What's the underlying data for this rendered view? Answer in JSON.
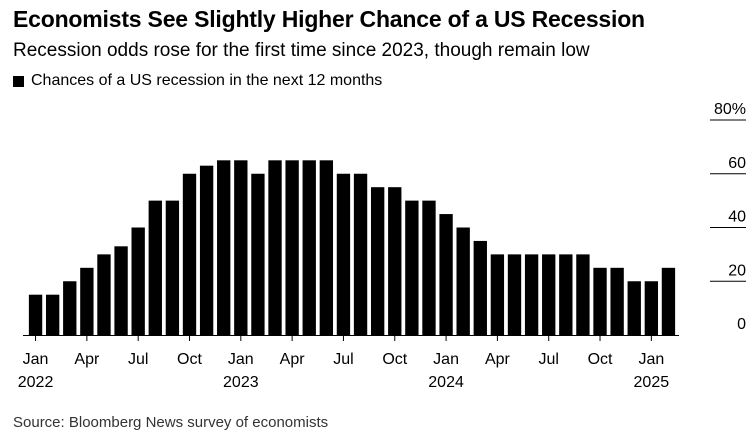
{
  "chart_data": {
    "type": "bar",
    "title": "Economists See Slightly Higher Chance of a US Recession",
    "subtitle": "Recession odds rose for the first time since 2023, though remain low",
    "legend": [
      "Chances of a US recession in the next 12 months"
    ],
    "source": "Source: Bloomberg News survey of economists",
    "color": "#000000",
    "categories": [
      "2022-01",
      "2022-02",
      "2022-03",
      "2022-04",
      "2022-05",
      "2022-06",
      "2022-07",
      "2022-08",
      "2022-09",
      "2022-10",
      "2022-11",
      "2022-12",
      "2023-01",
      "2023-02",
      "2023-03",
      "2023-04",
      "2023-05",
      "2023-06",
      "2023-07",
      "2023-08",
      "2023-09",
      "2023-10",
      "2023-11",
      "2023-12",
      "2024-01",
      "2024-02",
      "2024-03",
      "2024-04",
      "2024-05",
      "2024-06",
      "2024-07",
      "2024-08",
      "2024-09",
      "2024-10",
      "2024-11",
      "2024-12",
      "2025-01",
      "2025-02"
    ],
    "values": [
      15,
      15,
      20,
      25,
      30,
      33,
      40,
      50,
      50,
      60,
      63,
      65,
      65,
      60,
      65,
      65,
      65,
      65,
      60,
      60,
      55,
      55,
      50,
      50,
      45,
      40,
      35,
      30,
      30,
      30,
      30,
      30,
      30,
      25,
      25,
      20,
      20,
      25
    ],
    "ylim": [
      0,
      80
    ],
    "yticks": [
      0,
      20,
      40,
      60,
      80
    ],
    "ytick_labels": [
      "0",
      "20",
      "40",
      "60",
      "80%"
    ],
    "xticks": [
      {
        "category": "2022-01",
        "label": "Jan",
        "year": "2022"
      },
      {
        "category": "2022-04",
        "label": "Apr",
        "year": ""
      },
      {
        "category": "2022-07",
        "label": "Jul",
        "year": ""
      },
      {
        "category": "2022-10",
        "label": "Oct",
        "year": ""
      },
      {
        "category": "2023-01",
        "label": "Jan",
        "year": "2023"
      },
      {
        "category": "2023-04",
        "label": "Apr",
        "year": ""
      },
      {
        "category": "2023-07",
        "label": "Jul",
        "year": ""
      },
      {
        "category": "2023-10",
        "label": "Oct",
        "year": ""
      },
      {
        "category": "2024-01",
        "label": "Jan",
        "year": "2024"
      },
      {
        "category": "2024-04",
        "label": "Apr",
        "year": ""
      },
      {
        "category": "2024-07",
        "label": "Jul",
        "year": ""
      },
      {
        "category": "2024-10",
        "label": "Oct",
        "year": ""
      },
      {
        "category": "2025-01",
        "label": "Jan",
        "year": "2025"
      }
    ],
    "grid": true,
    "yaxis_position": "right",
    "legend_position": "top-left"
  }
}
